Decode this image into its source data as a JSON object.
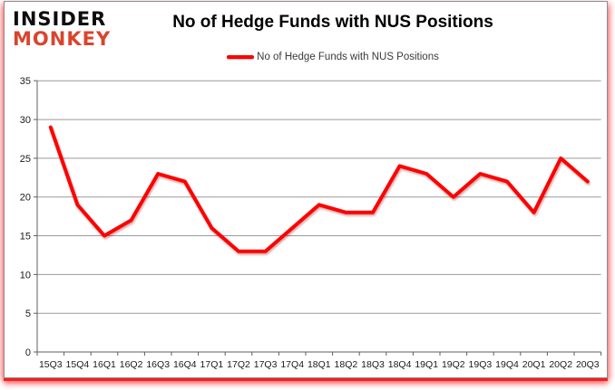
{
  "logo": {
    "line1": "INSIDER",
    "line2": "MONKEY",
    "color_top": "#0d0d0d",
    "color_bottom": "#d9452c"
  },
  "header": {
    "title": "No of Hedge Funds with NUS Positions"
  },
  "legend": {
    "label": "No of Hedge Funds with NUS Positions",
    "line_color": "#ff0000"
  },
  "chart_data": {
    "type": "line",
    "title": "No of Hedge Funds with NUS Positions",
    "xlabel": "",
    "ylabel": "",
    "categories": [
      "15Q3",
      "15Q4",
      "16Q1",
      "16Q2",
      "16Q3",
      "16Q4",
      "17Q1",
      "17Q2",
      "17Q3",
      "17Q4",
      "18Q1",
      "18Q2",
      "18Q3",
      "18Q4",
      "19Q1",
      "19Q2",
      "19Q3",
      "19Q4",
      "20Q1",
      "20Q2",
      "20Q3"
    ],
    "series": [
      {
        "name": "No of Hedge Funds with NUS Positions",
        "color": "#ff0000",
        "values": [
          29,
          19,
          15,
          17,
          23,
          22,
          16,
          13,
          13,
          16,
          19,
          18,
          18,
          24,
          23,
          20,
          23,
          22,
          18,
          25,
          22
        ]
      }
    ],
    "ylim": [
      0,
      35
    ],
    "yticks": [
      0,
      5,
      10,
      15,
      20,
      25,
      30,
      35
    ],
    "grid": true,
    "gridline_color": "#9a9a9a",
    "axis_color": "#5f5f5f",
    "legend_position": "top-center"
  }
}
